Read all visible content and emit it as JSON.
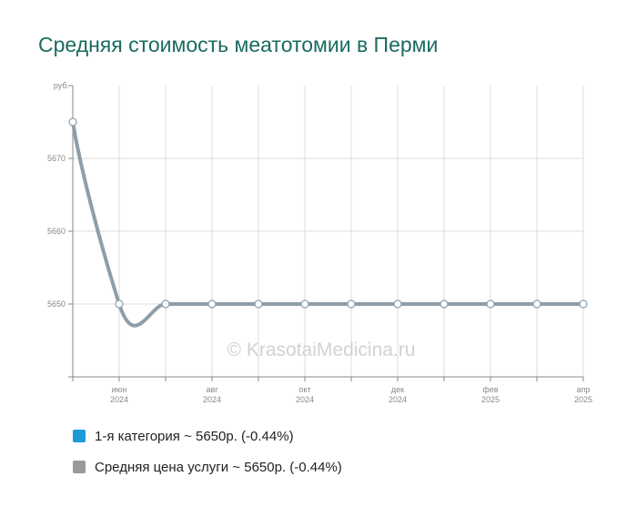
{
  "chart_data": {
    "type": "line",
    "title": "Средняя стоимость меатотомии в Перми",
    "y_unit": "руб.",
    "y_ticks": [
      5650,
      5660,
      5670
    ],
    "ylim": [
      5640,
      5680
    ],
    "x_ticks": [
      {
        "month": 1,
        "line1": "июн",
        "line2": "2024"
      },
      {
        "month": 3,
        "line1": "авг",
        "line2": "2024"
      },
      {
        "month": 5,
        "line1": "окт",
        "line2": "2024"
      },
      {
        "month": 7,
        "line1": "дек",
        "line2": "2024"
      },
      {
        "month": 9,
        "line1": "фев",
        "line2": "2025"
      },
      {
        "month": 11,
        "line1": "апр",
        "line2": "2025"
      }
    ],
    "xlim": [
      0,
      11
    ],
    "series": [
      {
        "name": "Средняя цена услуги",
        "color": "#8e9ea8",
        "x": [
          0,
          1,
          2,
          3,
          4,
          5,
          6,
          7,
          8,
          9,
          10,
          11
        ],
        "values": [
          5675,
          5650,
          5650,
          5650,
          5650,
          5650,
          5650,
          5650,
          5650,
          5650,
          5650,
          5650
        ]
      }
    ],
    "grid": true,
    "legend_position": "bottom"
  },
  "legend": [
    {
      "label": "1-я категория ~ 5650р. (-0.44%)",
      "color": "#1e9ad6"
    },
    {
      "label": "Средняя цена услуги ~ 5650р. (-0.44%)",
      "color": "#999999"
    }
  ],
  "watermark": "© KrasotaiMedicina.ru"
}
